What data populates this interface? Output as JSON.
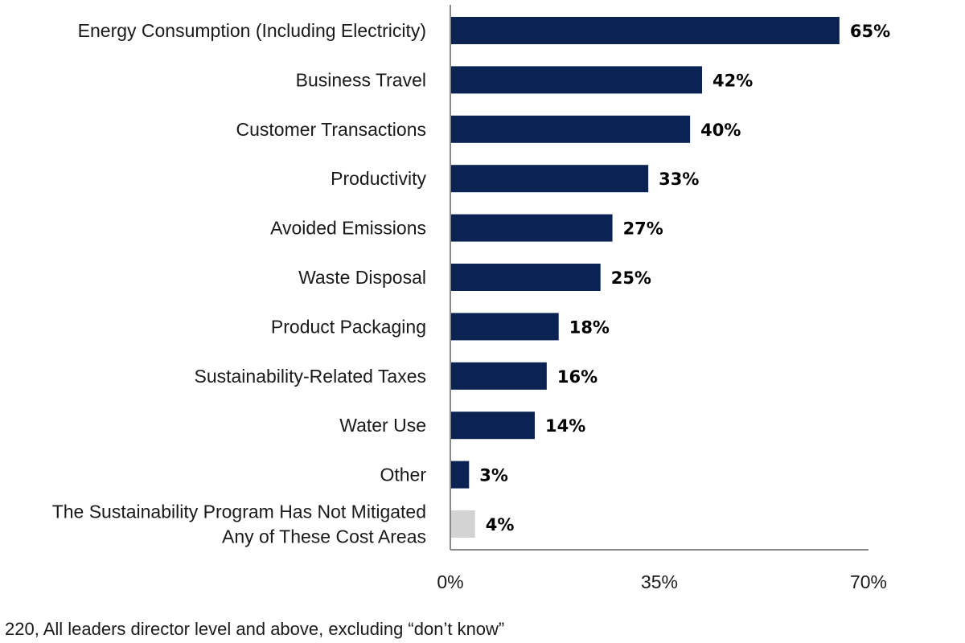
{
  "chart_data": {
    "type": "bar",
    "orientation": "horizontal",
    "categories": [
      [
        "Energy Consumption (Including Electricity)"
      ],
      [
        "Business Travel"
      ],
      [
        "Customer Transactions"
      ],
      [
        "Productivity"
      ],
      [
        "Avoided Emissions"
      ],
      [
        "Waste Disposal"
      ],
      [
        "Product Packaging"
      ],
      [
        "Sustainability-Related Taxes"
      ],
      [
        "Water Use"
      ],
      [
        "Other"
      ],
      [
        "The Sustainability Program Has Not Mitigated",
        "Any of These Cost Areas"
      ]
    ],
    "values": [
      65,
      42,
      40,
      33,
      27,
      25,
      18,
      16,
      14,
      3,
      4
    ],
    "value_labels": [
      "65%",
      "42%",
      "40%",
      "33%",
      "27%",
      "25%",
      "18%",
      "16%",
      "14%",
      "3%",
      "4%"
    ],
    "bar_colors": [
      "#0b2353",
      "#0b2353",
      "#0b2353",
      "#0b2353",
      "#0b2353",
      "#0b2353",
      "#0b2353",
      "#0b2353",
      "#0b2353",
      "#0b2353",
      "#d3d3d3"
    ],
    "xlim": [
      0,
      70
    ],
    "x_ticks": [
      0,
      35,
      70
    ],
    "x_tick_labels": [
      "0%",
      "35%",
      "70%"
    ],
    "grid": false
  },
  "footnote": "220, All leaders director level and above, excluding “don’t know”"
}
